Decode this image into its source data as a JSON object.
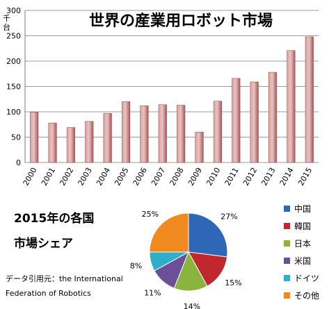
{
  "chart_data": [
    {
      "type": "bar",
      "title": "世界の産業用ロボット市場",
      "ylabel_top": "千",
      "ylabel_bottom": "台",
      "categories": [
        "2000",
        "2001",
        "2002",
        "2003",
        "2004",
        "2005",
        "2006",
        "2007",
        "2008",
        "2009",
        "2010",
        "2011",
        "2012",
        "2013",
        "2014",
        "2015"
      ],
      "values": [
        99,
        78,
        69,
        81,
        97,
        120,
        112,
        114,
        113,
        60,
        121,
        166,
        159,
        178,
        221,
        248
      ],
      "ylim": [
        0,
        300
      ],
      "yticks": [
        0,
        50,
        100,
        150,
        200,
        250,
        300
      ],
      "grid": true,
      "color": "#c27878"
    },
    {
      "type": "pie",
      "title_line1": "2015年の各国",
      "title_line2": "市場シェア",
      "labels": [
        "中国",
        "韓国",
        "日本",
        "米国",
        "ドイツ",
        "その他"
      ],
      "values": [
        27,
        15,
        14,
        11,
        8,
        25
      ],
      "value_labels": [
        "27%",
        "15%",
        "14%",
        "11%",
        "8%",
        "25%"
      ],
      "colors": [
        "#2f67b8",
        "#c0282e",
        "#8ab43e",
        "#6d4f98",
        "#2eaecb",
        "#f08a1e"
      ],
      "legend": "right"
    }
  ],
  "credit_line1": "データ引用元：the International",
  "credit_line2": "Federation of Robotics"
}
